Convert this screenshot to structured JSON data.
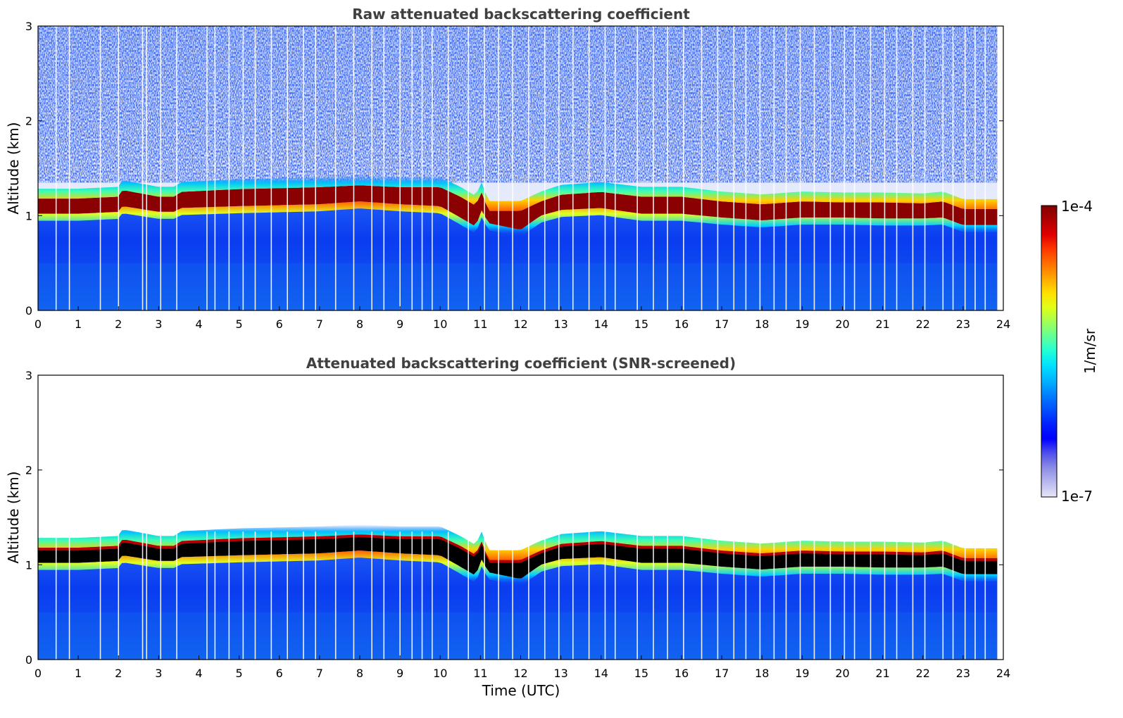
{
  "chart_data": [
    {
      "type": "heatmap",
      "title": "Raw attenuated backscattering coefficient",
      "xlabel": "",
      "ylabel": "Altitude (km)",
      "xlim": [
        0,
        24
      ],
      "ylim": [
        0,
        3
      ],
      "x_ticks": [
        "0",
        "1",
        "2",
        "3",
        "4",
        "5",
        "6",
        "7",
        "8",
        "9",
        "10",
        "11",
        "12",
        "13",
        "14",
        "15",
        "16",
        "17",
        "18",
        "19",
        "20",
        "21",
        "22",
        "23",
        "24"
      ],
      "y_ticks": [
        "0",
        "1",
        "2",
        "3"
      ],
      "data_time_range": [
        0,
        23.85
      ],
      "screened": false,
      "layer_top_km": [
        [
          0,
          1.18
        ],
        [
          1,
          1.18
        ],
        [
          2,
          1.2
        ],
        [
          2.1,
          1.27
        ],
        [
          3,
          1.2
        ],
        [
          3.45,
          1.2
        ],
        [
          3.5,
          1.25
        ],
        [
          5,
          1.28
        ],
        [
          7,
          1.3
        ],
        [
          8,
          1.32
        ],
        [
          9,
          1.3
        ],
        [
          10,
          1.3
        ],
        [
          10.5,
          1.2
        ],
        [
          10.9,
          1.1
        ],
        [
          11,
          1.28
        ],
        [
          11.2,
          1.05
        ],
        [
          12,
          1.05
        ],
        [
          12.5,
          1.15
        ],
        [
          13,
          1.22
        ],
        [
          14,
          1.25
        ],
        [
          15,
          1.2
        ],
        [
          16,
          1.2
        ],
        [
          17,
          1.15
        ],
        [
          18,
          1.12
        ],
        [
          19,
          1.15
        ],
        [
          20,
          1.14
        ],
        [
          21,
          1.14
        ],
        [
          22,
          1.13
        ],
        [
          22.5,
          1.15
        ],
        [
          23,
          1.07
        ],
        [
          23.85,
          1.07
        ]
      ],
      "layer_base_km": [
        [
          0,
          1.02
        ],
        [
          1,
          1.02
        ],
        [
          2,
          1.04
        ],
        [
          2.1,
          1.1
        ],
        [
          3,
          1.04
        ],
        [
          3.45,
          1.04
        ],
        [
          3.5,
          1.08
        ],
        [
          5,
          1.1
        ],
        [
          7,
          1.12
        ],
        [
          8,
          1.15
        ],
        [
          9,
          1.12
        ],
        [
          10,
          1.1
        ],
        [
          10.5,
          0.98
        ],
        [
          10.9,
          0.88
        ],
        [
          11,
          1.08
        ],
        [
          11.2,
          0.92
        ],
        [
          12,
          0.85
        ],
        [
          12.5,
          1.0
        ],
        [
          13,
          1.06
        ],
        [
          14,
          1.08
        ],
        [
          15,
          1.02
        ],
        [
          16,
          1.02
        ],
        [
          17,
          0.98
        ],
        [
          18,
          0.95
        ],
        [
          19,
          0.98
        ],
        [
          20,
          0.98
        ],
        [
          21,
          0.97
        ],
        [
          22,
          0.97
        ],
        [
          22.5,
          0.98
        ],
        [
          23,
          0.9
        ],
        [
          23.85,
          0.9
        ]
      ],
      "gap_times": [
        0.45,
        0.78,
        1.55,
        2.0,
        2.6,
        2.7,
        3.05,
        3.45,
        4.2,
        4.4,
        4.75,
        5.1,
        5.4,
        5.8,
        6.2,
        6.6,
        6.9,
        7.4,
        7.85,
        8.3,
        8.6,
        9.0,
        9.3,
        9.55,
        9.8,
        10.2,
        10.7,
        11.1,
        11.45,
        11.8,
        12.2,
        12.6,
        12.95,
        13.3,
        13.7,
        14.1,
        14.35,
        14.9,
        15.3,
        15.65,
        16.05,
        16.5,
        16.9,
        17.3,
        17.6,
        17.95,
        18.3,
        18.6,
        18.95,
        19.3,
        19.7,
        20.05,
        20.3,
        20.7,
        21.05,
        21.35,
        21.75,
        22.05,
        22.5,
        22.75,
        23.05,
        23.3,
        23.55
      ]
    },
    {
      "type": "heatmap",
      "title": "Attenuated backscattering coefficient (SNR-screened)",
      "xlabel": "Time (UTC)",
      "ylabel": "Altitude (km)",
      "xlim": [
        0,
        24
      ],
      "ylim": [
        0,
        3
      ],
      "x_ticks": [
        "0",
        "1",
        "2",
        "3",
        "4",
        "5",
        "6",
        "7",
        "8",
        "9",
        "10",
        "11",
        "12",
        "13",
        "14",
        "15",
        "16",
        "17",
        "18",
        "19",
        "20",
        "21",
        "22",
        "23",
        "24"
      ],
      "y_ticks": [
        "0",
        "1",
        "2",
        "3"
      ],
      "data_time_range": [
        0,
        23.85
      ],
      "screened": true,
      "layer_top_km": [
        [
          0,
          1.18
        ],
        [
          1,
          1.18
        ],
        [
          2,
          1.2
        ],
        [
          2.1,
          1.27
        ],
        [
          3,
          1.2
        ],
        [
          3.45,
          1.2
        ],
        [
          3.5,
          1.25
        ],
        [
          5,
          1.28
        ],
        [
          7,
          1.3
        ],
        [
          8,
          1.32
        ],
        [
          9,
          1.3
        ],
        [
          10,
          1.3
        ],
        [
          10.5,
          1.2
        ],
        [
          10.9,
          1.1
        ],
        [
          11,
          1.28
        ],
        [
          11.2,
          1.05
        ],
        [
          12,
          1.05
        ],
        [
          12.5,
          1.15
        ],
        [
          13,
          1.22
        ],
        [
          14,
          1.25
        ],
        [
          15,
          1.2
        ],
        [
          16,
          1.2
        ],
        [
          17,
          1.15
        ],
        [
          18,
          1.12
        ],
        [
          19,
          1.15
        ],
        [
          20,
          1.14
        ],
        [
          21,
          1.14
        ],
        [
          22,
          1.13
        ],
        [
          22.5,
          1.15
        ],
        [
          23,
          1.07
        ],
        [
          23.85,
          1.07
        ]
      ],
      "layer_base_km": [
        [
          0,
          1.02
        ],
        [
          1,
          1.02
        ],
        [
          2,
          1.04
        ],
        [
          2.1,
          1.1
        ],
        [
          3,
          1.04
        ],
        [
          3.45,
          1.04
        ],
        [
          3.5,
          1.08
        ],
        [
          5,
          1.1
        ],
        [
          7,
          1.12
        ],
        [
          8,
          1.15
        ],
        [
          9,
          1.12
        ],
        [
          10,
          1.1
        ],
        [
          10.5,
          0.98
        ],
        [
          10.9,
          0.88
        ],
        [
          11,
          1.08
        ],
        [
          11.2,
          0.92
        ],
        [
          12,
          0.85
        ],
        [
          12.5,
          1.0
        ],
        [
          13,
          1.06
        ],
        [
          14,
          1.08
        ],
        [
          15,
          1.02
        ],
        [
          16,
          1.02
        ],
        [
          17,
          0.98
        ],
        [
          18,
          0.95
        ],
        [
          19,
          0.98
        ],
        [
          20,
          0.98
        ],
        [
          21,
          0.97
        ],
        [
          22,
          0.97
        ],
        [
          22.5,
          0.98
        ],
        [
          23,
          0.9
        ],
        [
          23.85,
          0.9
        ]
      ],
      "gap_times": [
        0.45,
        0.78,
        1.55,
        2.0,
        2.6,
        2.7,
        3.05,
        3.45,
        4.2,
        4.4,
        4.75,
        5.1,
        5.4,
        5.8,
        6.2,
        6.6,
        6.9,
        7.4,
        7.85,
        8.3,
        8.6,
        9.0,
        9.3,
        9.55,
        9.8,
        10.2,
        10.7,
        11.1,
        11.45,
        11.8,
        12.2,
        12.6,
        12.95,
        13.3,
        13.7,
        14.1,
        14.35,
        14.9,
        15.3,
        15.65,
        16.05,
        16.5,
        16.9,
        17.3,
        17.6,
        17.95,
        18.3,
        18.6,
        18.95,
        19.3,
        19.7,
        20.05,
        20.3,
        20.7,
        21.05,
        21.35,
        21.75,
        22.05,
        22.5,
        22.75,
        23.05,
        23.3,
        23.55
      ]
    }
  ],
  "colorbar": {
    "label": "1/m/sr",
    "max_label": "1e-4",
    "min_label": "1e-7",
    "scale": "log",
    "colors": [
      "#e6e6f8",
      "#b9b9ee",
      "#8c8ce6",
      "#5050ec",
      "#0000ff",
      "#0020ff",
      "#0050ff",
      "#0080ff",
      "#00b4ff",
      "#00e0ff",
      "#20ffd8",
      "#60ff98",
      "#a0ff58",
      "#e0ff18",
      "#ffe000",
      "#ffa800",
      "#ff7000",
      "#ff3800",
      "#e00000",
      "#b00000",
      "#800000"
    ]
  },
  "colors": {
    "title": "#404040",
    "aerosol": "#0a3cf0",
    "cloud": "#8b0000",
    "screened_cloud": "#000000"
  }
}
